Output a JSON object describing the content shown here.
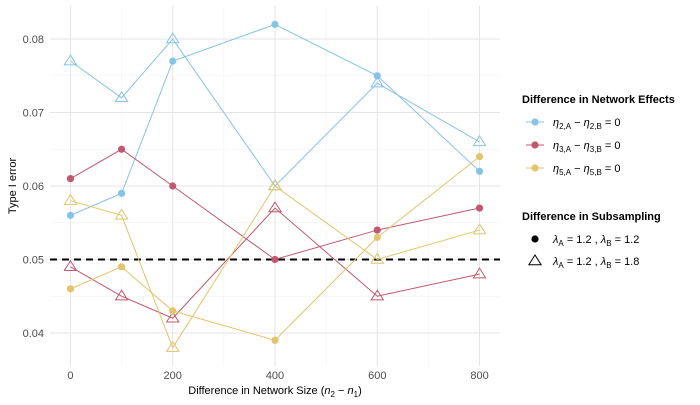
{
  "chart_data": {
    "type": "line",
    "title": "",
    "xlabel": "Difference in Network Size (n2 − n1)",
    "ylabel": "Type I error",
    "x": [
      0,
      100,
      200,
      400,
      600,
      800
    ],
    "x_ticks": [
      0,
      200,
      400,
      600,
      800
    ],
    "y_ticks": [
      0.04,
      0.05,
      0.06,
      0.07,
      0.08
    ],
    "y_tick_labels": [
      "0.04",
      "0.05",
      "0.06",
      "0.07",
      "0.08"
    ],
    "xlim": [
      -40,
      840
    ],
    "ylim": [
      0.0355,
      0.0845
    ],
    "grid": true,
    "reference_line": {
      "y": 0.05,
      "style": "dashed",
      "color": "#000000"
    },
    "legend_placement": "right",
    "series": [
      {
        "effect": "eta2",
        "subsample": "same",
        "color": "#86c3e6",
        "marker": "circle",
        "values": [
          0.056,
          0.059,
          0.077,
          0.082,
          0.075,
          0.062
        ]
      },
      {
        "effect": "eta2",
        "subsample": "diff",
        "color": "#86c3e6",
        "marker": "triangle",
        "values": [
          0.077,
          0.072,
          0.08,
          0.06,
          0.074,
          0.066
        ]
      },
      {
        "effect": "eta3",
        "subsample": "same",
        "color": "#c0586f",
        "marker": "circle",
        "values": [
          0.061,
          0.065,
          0.06,
          0.05,
          0.054,
          0.057
        ]
      },
      {
        "effect": "eta3",
        "subsample": "diff",
        "color": "#c0586f",
        "marker": "triangle",
        "values": [
          0.049,
          0.045,
          0.042,
          0.057,
          0.045,
          0.048
        ]
      },
      {
        "effect": "eta5",
        "subsample": "same",
        "color": "#e2c46a",
        "marker": "circle",
        "values": [
          0.046,
          0.049,
          0.043,
          0.039,
          0.053,
          0.064
        ]
      },
      {
        "effect": "eta5",
        "subsample": "diff",
        "color": "#e2c46a",
        "marker": "triangle",
        "values": [
          0.058,
          0.056,
          0.038,
          0.06,
          0.05,
          0.054
        ]
      }
    ],
    "legends": [
      {
        "title": "Difference in Network Effects",
        "items": [
          {
            "key": "eta2",
            "color": "#86c3e6",
            "label": "η2,A − η2,B = 0"
          },
          {
            "key": "eta3",
            "color": "#c0586f",
            "label": "η3,A − η3,B = 0"
          },
          {
            "key": "eta5",
            "color": "#e2c46a",
            "label": "η5,A − η5,B = 0"
          }
        ]
      },
      {
        "title": "Difference in Subsampling",
        "items": [
          {
            "key": "same",
            "marker": "circle",
            "label": "λA = 1.2 , λB = 1.2"
          },
          {
            "key": "diff",
            "marker": "triangle",
            "label": "λA = 1.2 , λB = 1.8"
          }
        ]
      }
    ]
  }
}
